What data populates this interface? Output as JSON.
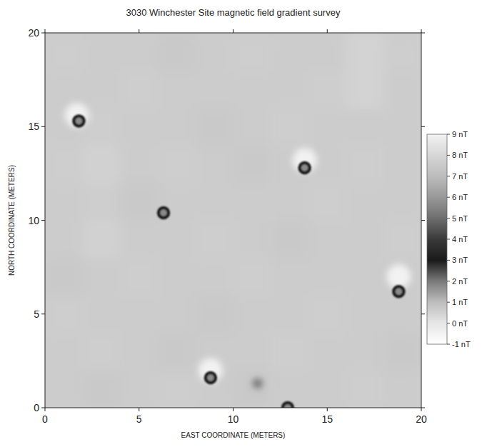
{
  "chart_data": {
    "type": "heatmap",
    "title": "3030 Winchester Site magnetic field gradient survey",
    "x_label": "EAST COORDINATE (METERS)",
    "y_label": "NORTH COORDINATE (METERS)",
    "xlim": [
      0,
      20
    ],
    "ylim": [
      0,
      20
    ],
    "xticks": [
      0,
      5,
      10,
      15,
      20
    ],
    "yticks": [
      0,
      5,
      10,
      15,
      20
    ],
    "cells": [
      [
        7.6,
        7.5,
        7.6,
        7.7,
        7.6,
        7.5,
        7.6,
        7.6,
        7.7,
        7.6
      ],
      [
        7.6,
        7.7,
        7.6,
        7.5,
        7.6,
        7.6,
        7.7,
        7.6,
        7.6,
        7.5
      ],
      [
        7.7,
        7.6,
        7.6,
        7.6,
        7.5,
        7.6,
        7.6,
        7.7,
        7.6,
        7.6
      ],
      [
        7.5,
        7.6,
        7.7,
        7.6,
        7.6,
        7.7,
        7.6,
        7.6,
        7.6,
        7.6
      ],
      [
        7.6,
        7.8,
        7.6,
        7.6,
        7.7,
        7.6,
        7.5,
        7.6,
        7.6,
        7.7
      ],
      [
        7.6,
        7.7,
        7.5,
        7.6,
        7.6,
        7.6,
        7.6,
        7.7,
        7.6,
        7.6
      ],
      [
        7.7,
        7.8,
        7.6,
        7.7,
        7.6,
        7.5,
        7.6,
        7.6,
        7.7,
        7.6
      ],
      [
        7.6,
        7.7,
        7.6,
        7.6,
        7.5,
        7.6,
        7.7,
        7.6,
        7.6,
        7.6
      ],
      [
        7.6,
        7.6,
        7.7,
        7.6,
        7.6,
        7.6,
        7.6,
        7.7,
        7.9,
        7.6
      ],
      [
        7.7,
        7.6,
        7.6,
        7.5,
        7.6,
        7.7,
        7.6,
        7.6,
        7.9,
        7.7
      ]
    ],
    "points": {
      "x": [
        1.7,
        13.8,
        18.8,
        8.8,
        1.8,
        6.3,
        13.8,
        18.8,
        8.8,
        11.3,
        12.9
      ],
      "y": [
        15.6,
        13.2,
        7.0,
        2.0,
        15.3,
        10.4,
        12.8,
        6.2,
        1.6,
        1.3,
        0.0
      ],
      "values": [
        9,
        9,
        9,
        9,
        3,
        3,
        3,
        3,
        3,
        5,
        3
      ]
    },
    "colorbar": {
      "lim": [
        -1,
        9
      ],
      "ticks": [
        {
          "value": 9,
          "label": "9 nT"
        },
        {
          "value": 8,
          "label": "8 nT"
        },
        {
          "value": 7,
          "label": "7 nT"
        },
        {
          "value": 6,
          "label": "6 nT"
        },
        {
          "value": 5,
          "label": "5 nT"
        },
        {
          "value": 4,
          "label": "4 nT"
        },
        {
          "value": 3,
          "label": "3 nT"
        },
        {
          "value": 2,
          "label": "2 nT"
        },
        {
          "value": 1,
          "label": "1 nT"
        },
        {
          "value": 0,
          "label": "0 nT"
        },
        {
          "value": -1,
          "label": "-1 nT"
        }
      ],
      "colors": [
        "#ffffff",
        "#e6e6e6",
        "#bdbdbd",
        "#7a7a7a",
        "#1a1a1a",
        "#3a3a3a",
        "#6e6e6e",
        "#999999",
        "#bcbcbc",
        "#d6d6d6",
        "#f2f2f2"
      ]
    }
  }
}
